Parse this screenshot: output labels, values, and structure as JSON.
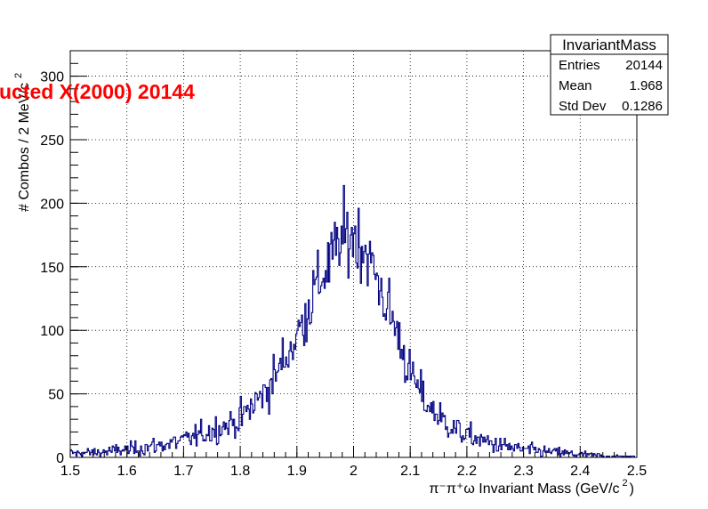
{
  "chart_data": {
    "type": "bar",
    "histogram": true,
    "title": "ructed X(2000) 20144",
    "xlabel": "π⁻π⁺ω Invariant Mass (GeV/c",
    "xlabel_sup": "2",
    "xlabel_close": ")",
    "ylabel": "# Combos / 2 MeV/c",
    "ylabel_sup": "2",
    "xlim": [
      1.5,
      2.5
    ],
    "ylim": [
      0,
      320
    ],
    "grid": true,
    "x_ticks": [
      "1.5",
      "1.6",
      "1.7",
      "1.8",
      "1.9",
      "2",
      "2.1",
      "2.2",
      "2.3",
      "2.4",
      "2.5"
    ],
    "y_ticks": [
      "0",
      "50",
      "100",
      "150",
      "200",
      "250",
      "300"
    ],
    "series_color": "#000080",
    "title_color": "#ff0000",
    "bin_width": 0.002,
    "bin_start": 1.5,
    "stats_box": {
      "name": "InvariantMass",
      "rows": [
        {
          "label": "Entries",
          "value": "20144"
        },
        {
          "label": "Mean",
          "value": "1.968"
        },
        {
          "label": "Std Dev",
          "value": "0.1286"
        }
      ]
    },
    "envelope": [
      [
        1.5,
        3
      ],
      [
        1.55,
        4
      ],
      [
        1.6,
        6
      ],
      [
        1.65,
        9
      ],
      [
        1.7,
        13
      ],
      [
        1.75,
        21
      ],
      [
        1.8,
        30
      ],
      [
        1.85,
        55
      ],
      [
        1.9,
        95
      ],
      [
        1.93,
        130
      ],
      [
        1.96,
        155
      ],
      [
        1.98,
        172
      ],
      [
        2.0,
        175
      ],
      [
        2.02,
        165
      ],
      [
        2.05,
        130
      ],
      [
        2.08,
        95
      ],
      [
        2.1,
        65
      ],
      [
        2.13,
        42
      ],
      [
        2.16,
        28
      ],
      [
        2.2,
        17
      ],
      [
        2.25,
        10
      ],
      [
        2.3,
        6
      ],
      [
        2.35,
        4
      ],
      [
        2.4,
        2
      ],
      [
        2.45,
        1
      ],
      [
        2.5,
        0
      ]
    ]
  }
}
